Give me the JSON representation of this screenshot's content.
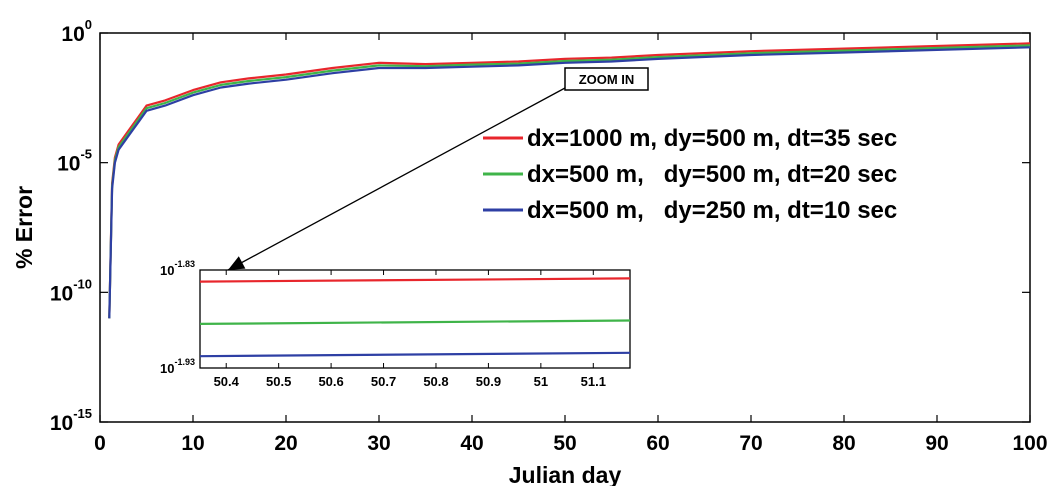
{
  "chart_data": {
    "type": "line",
    "title": "",
    "xlabel": "Julian day",
    "ylabel": "% Error",
    "xlim": [
      0,
      100
    ],
    "y_scale": "log",
    "ylim_exponent": [
      -15,
      0
    ],
    "x_ticks": [
      "0",
      "10",
      "20",
      "30",
      "40",
      "50",
      "60",
      "70",
      "80",
      "90",
      "100"
    ],
    "y_ticks": [
      {
        "base": "10",
        "exp": "0",
        "value_exp": 0
      },
      {
        "base": "10",
        "exp": "-5",
        "value_exp": -5
      },
      {
        "base": "10",
        "exp": "-10",
        "value_exp": -10
      },
      {
        "base": "10",
        "exp": "-15",
        "value_exp": -15
      }
    ],
    "grid": false,
    "legend": "upper-right",
    "series": [
      {
        "name": "dx=1000 m, dy=500 m, dt=35 sec",
        "color": "#e8262c",
        "x": [
          1.0,
          1.3,
          1.6,
          2,
          3,
          4,
          5,
          7,
          10,
          13,
          16,
          20,
          25,
          30,
          35,
          40,
          45,
          50,
          55,
          60,
          70,
          80,
          90,
          100
        ],
        "log10_y": [
          -11,
          -5.8,
          -4.8,
          -4.3,
          -3.8,
          -3.3,
          -2.8,
          -2.6,
          -2.2,
          -1.9,
          -1.75,
          -1.6,
          -1.35,
          -1.15,
          -1.2,
          -1.15,
          -1.1,
          -1.0,
          -0.95,
          -0.85,
          -0.7,
          -0.6,
          -0.5,
          -0.4
        ]
      },
      {
        "name": "dx=500 m,   dy=500 m, dt=20 sec",
        "color": "#3fb449",
        "x": [
          1.0,
          1.3,
          1.6,
          2,
          3,
          4,
          5,
          7,
          10,
          13,
          16,
          20,
          25,
          30,
          35,
          40,
          45,
          50,
          55,
          60,
          70,
          80,
          90,
          100
        ],
        "log10_y": [
          -11,
          -5.9,
          -4.9,
          -4.4,
          -3.9,
          -3.4,
          -2.9,
          -2.7,
          -2.3,
          -2.0,
          -1.85,
          -1.7,
          -1.45,
          -1.25,
          -1.28,
          -1.22,
          -1.18,
          -1.08,
          -1.03,
          -0.93,
          -0.78,
          -0.68,
          -0.58,
          -0.48
        ]
      },
      {
        "name": "dx=500 m,   dy=250 m, dt=10 sec",
        "color": "#2e3fa4",
        "x": [
          1.0,
          1.3,
          1.6,
          2,
          3,
          4,
          5,
          7,
          10,
          13,
          16,
          20,
          25,
          30,
          35,
          40,
          45,
          50,
          55,
          60,
          70,
          80,
          90,
          100
        ],
        "log10_y": [
          -11,
          -6.0,
          -5.0,
          -4.5,
          -4.0,
          -3.5,
          -3.0,
          -2.8,
          -2.4,
          -2.1,
          -1.95,
          -1.8,
          -1.55,
          -1.35,
          -1.35,
          -1.3,
          -1.25,
          -1.15,
          -1.1,
          -1.0,
          -0.85,
          -0.75,
          -0.65,
          -0.55
        ]
      }
    ],
    "annotation": "ZOOM IN",
    "inset": {
      "xlim": [
        50.35,
        51.17
      ],
      "ylim_exponent": [
        -1.93,
        -1.83
      ],
      "x_ticks": [
        "50.4",
        "50.5",
        "50.6",
        "50.7",
        "50.8",
        "50.9",
        "51",
        "51.1"
      ],
      "y_ticks": [
        {
          "base": "10",
          "exp": "-1.83",
          "value_exp": -1.83
        },
        {
          "base": "10",
          "exp": "-1.93",
          "value_exp": -1.93
        }
      ],
      "series": [
        {
          "color": "#e8262c",
          "x": [
            50.35,
            51.17
          ],
          "log10_y": [
            -1.8418,
            -1.8386
          ]
        },
        {
          "color": "#3fb449",
          "x": [
            50.35,
            51.17
          ],
          "log10_y": [
            -1.885,
            -1.8815
          ]
        },
        {
          "color": "#2e3fa4",
          "x": [
            50.35,
            51.17
          ],
          "log10_y": [
            -1.918,
            -1.9145
          ]
        }
      ]
    }
  }
}
